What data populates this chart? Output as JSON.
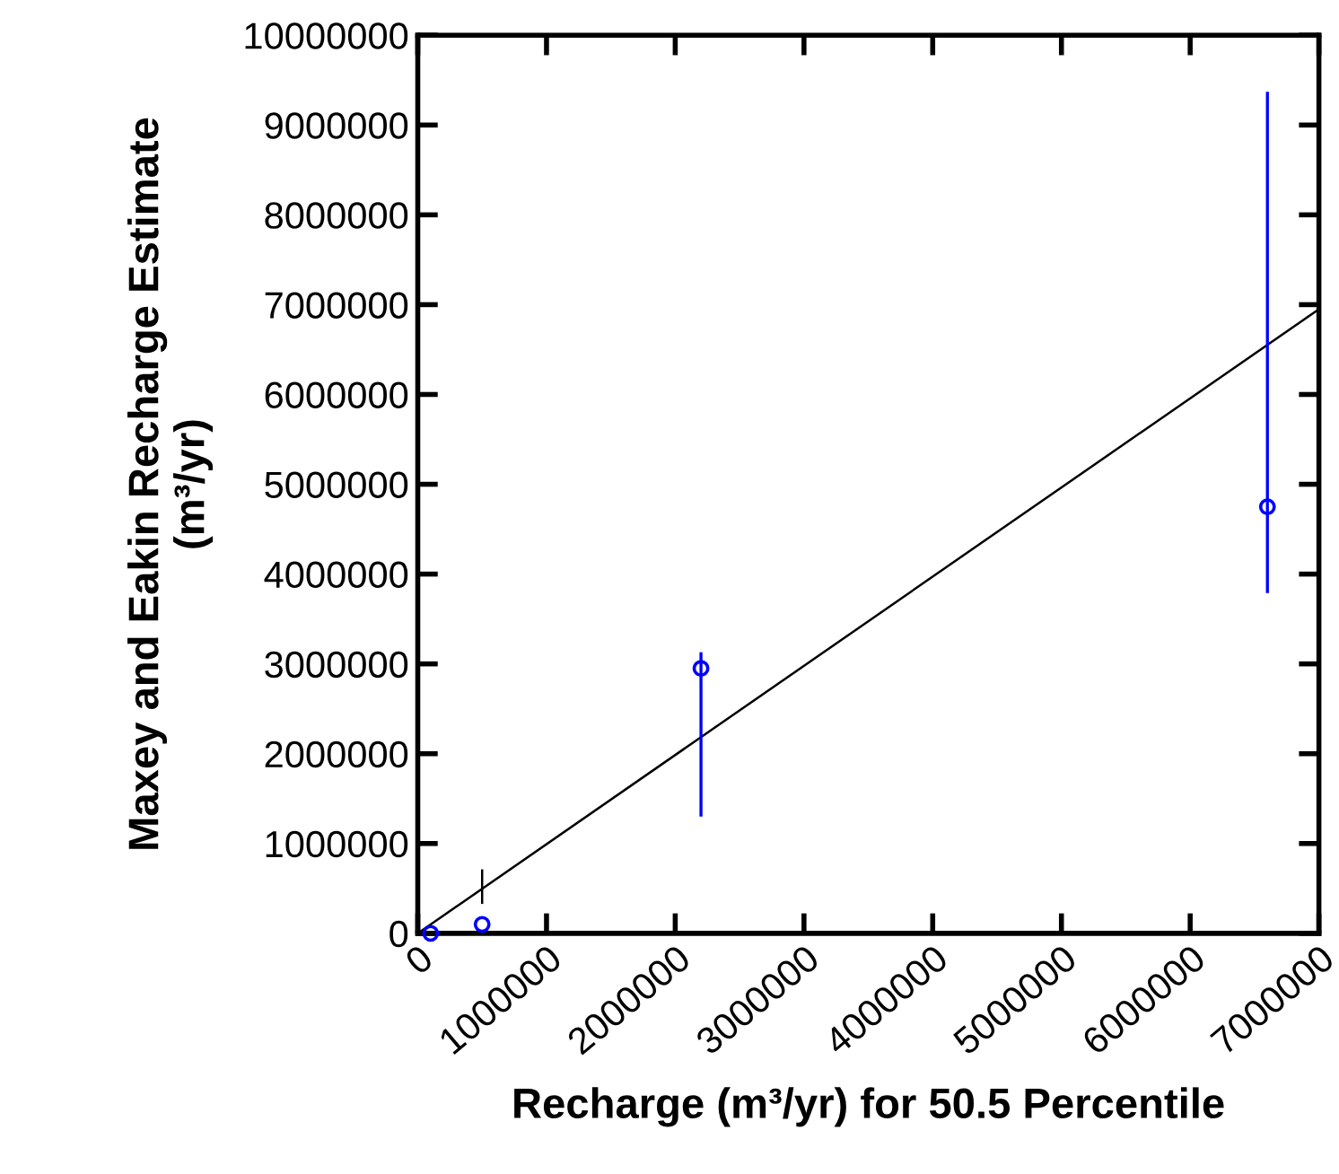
{
  "chart_data": {
    "type": "scatter",
    "xlabel": "Recharge (m³/yr) for 50.5 Percentile",
    "ylabel": "Maxey and Eakin Recharge Estimate\n(m³/yr)",
    "series": [
      {
        "color": "#0000ff",
        "marker": "circle",
        "x": [
          100000,
          500000,
          2200000,
          6600000
        ],
        "values": [
          0,
          100000,
          2950000,
          4750000
        ],
        "errors": [
          null,
          null,
          [
            1300000,
            3130000
          ],
          [
            3790000,
            9370000
          ]
        ]
      },
      {
        "type": "line",
        "color": "#000000",
        "x": [
          500000,
          500000
        ],
        "values": [
          340000,
          700000
        ]
      },
      {
        "type": "line",
        "color": "#000000",
        "x": [
          0,
          7000000
        ],
        "values": [
          0,
          6950000
        ]
      }
    ],
    "xlim": [
      0,
      7000000
    ],
    "ylim": [
      0,
      10000000
    ],
    "xticks": [
      0,
      1000000,
      2000000,
      3000000,
      4000000,
      5000000,
      6000000,
      7000000
    ],
    "yticks": [
      0,
      1000000,
      2000000,
      3000000,
      4000000,
      5000000,
      6000000,
      7000000,
      8000000,
      9000000,
      10000000
    ],
    "grid": false,
    "legend": false
  }
}
